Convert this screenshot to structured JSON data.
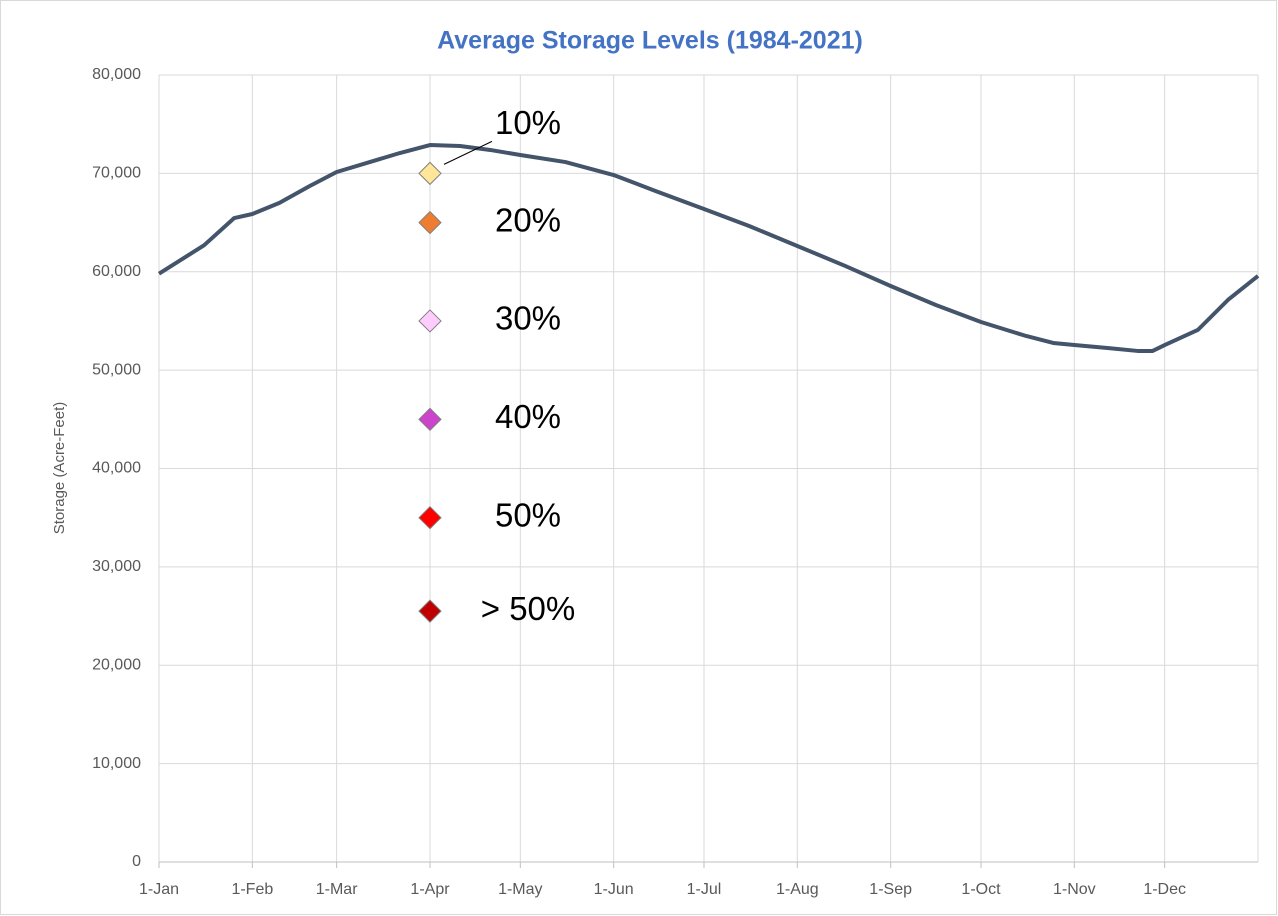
{
  "chart_data": {
    "type": "line",
    "title": "Average Storage Levels (1984-2021)",
    "ylabel": "Storage (Acre-Feet)",
    "xlim": [
      0,
      365
    ],
    "xticks": [
      {
        "value": 0,
        "label": "1-Jan"
      },
      {
        "value": 31,
        "label": "1-Feb"
      },
      {
        "value": 59,
        "label": "1-Mar"
      },
      {
        "value": 90,
        "label": "1-Apr"
      },
      {
        "value": 120,
        "label": "1-May"
      },
      {
        "value": 151,
        "label": "1-Jun"
      },
      {
        "value": 181,
        "label": "1-Jul"
      },
      {
        "value": 212,
        "label": "1-Aug"
      },
      {
        "value": 243,
        "label": "1-Sep"
      },
      {
        "value": 273,
        "label": "1-Oct"
      },
      {
        "value": 304,
        "label": "1-Nov"
      },
      {
        "value": 334,
        "label": "1-Dec"
      }
    ],
    "ylim": [
      0,
      80000
    ],
    "yticks": [
      0,
      {
        "value": 10000,
        "label": "10,000"
      },
      {
        "value": 20000,
        "label": "20,000"
      },
      {
        "value": 30000,
        "label": "30,000"
      },
      {
        "value": 40000,
        "label": "40,000"
      },
      {
        "value": 50000,
        "label": "50,000"
      },
      {
        "value": 60000,
        "label": "60,000"
      },
      {
        "value": 70000,
        "label": "70,000"
      },
      {
        "value": 80000,
        "label": "80,000"
      }
    ],
    "grid": true,
    "x": [
      0,
      15,
      25,
      31,
      40,
      50,
      59,
      70,
      80,
      90,
      100,
      110,
      120,
      135,
      151,
      165,
      181,
      196,
      212,
      228,
      243,
      258,
      273,
      288,
      297,
      304,
      315,
      325,
      330,
      334,
      345,
      355,
      365
    ],
    "series": [
      {
        "color": "#44546a",
        "values": [
          59800,
          62700,
          65460,
          65870,
          67000,
          68700,
          70140,
          71150,
          72070,
          72880,
          72780,
          72380,
          71870,
          71150,
          69830,
          68200,
          66380,
          64650,
          62620,
          60580,
          58550,
          56620,
          54890,
          53470,
          52760,
          52550,
          52250,
          51950,
          51950,
          52550,
          54080,
          57130,
          59570
        ]
      }
    ],
    "markers": {
      "x": 90,
      "values": [
        70000,
        65000,
        55000,
        45000,
        35000,
        25500
      ],
      "labels": [
        "10%",
        "20%",
        "30%",
        "40%",
        "50%",
        "> 50%"
      ],
      "colors": [
        "#ffe699",
        "#ed7d31",
        "#ffccff",
        "#cc44cc",
        "#ff0000",
        "#c00000"
      ]
    }
  }
}
